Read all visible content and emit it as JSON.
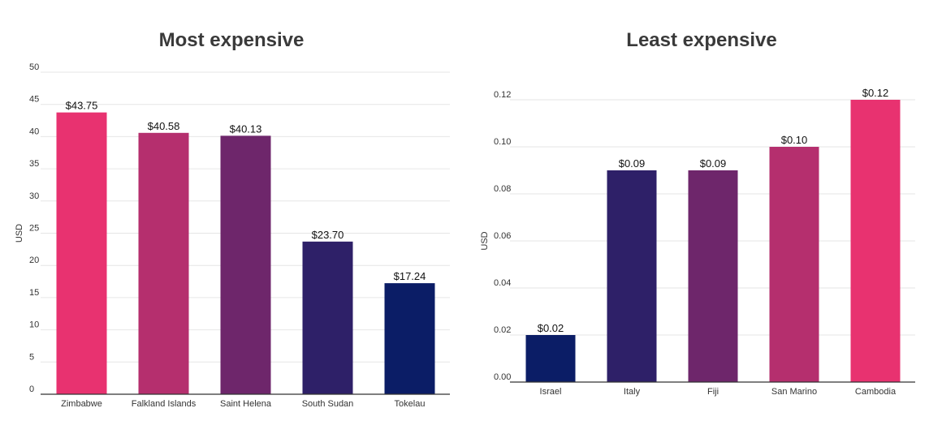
{
  "chart_data": [
    {
      "type": "bar",
      "title": "Most expensive",
      "ylabel": "USD",
      "xlabel": "",
      "ylim": [
        0,
        50
      ],
      "yticks": [
        0,
        5,
        10,
        15,
        20,
        25,
        30,
        35,
        40,
        45,
        50
      ],
      "ytick_decimals": 0,
      "grid": true,
      "categories": [
        "Zimbabwe",
        "Falkland Islands",
        "Saint Helena",
        "South Sudan",
        "Tokelau"
      ],
      "values": [
        43.75,
        40.58,
        40.13,
        23.7,
        17.24
      ],
      "data_labels": [
        "$43.75",
        "$40.58",
        "$40.13",
        "$23.70",
        "$17.24"
      ],
      "colors": [
        "#e83270",
        "#b52f6e",
        "#6e266b",
        "#2e2068",
        "#0b1d66"
      ]
    },
    {
      "type": "bar",
      "title": "Least expensive",
      "ylabel": "USD",
      "xlabel": "",
      "ylim": [
        0,
        0.12
      ],
      "yticks": [
        0,
        0.02,
        0.04,
        0.06,
        0.08,
        0.1,
        0.12
      ],
      "ytick_decimals": 2,
      "grid": true,
      "categories": [
        "Israel",
        "Italy",
        "Fiji",
        "San Marino",
        "Cambodia"
      ],
      "values": [
        0.02,
        0.09,
        0.09,
        0.1,
        0.12
      ],
      "data_labels": [
        "$0.02",
        "$0.09",
        "$0.09",
        "$0.10",
        "$0.12"
      ],
      "colors": [
        "#0b1d66",
        "#2e2068",
        "#6e266b",
        "#b52f6e",
        "#e83270"
      ]
    }
  ]
}
